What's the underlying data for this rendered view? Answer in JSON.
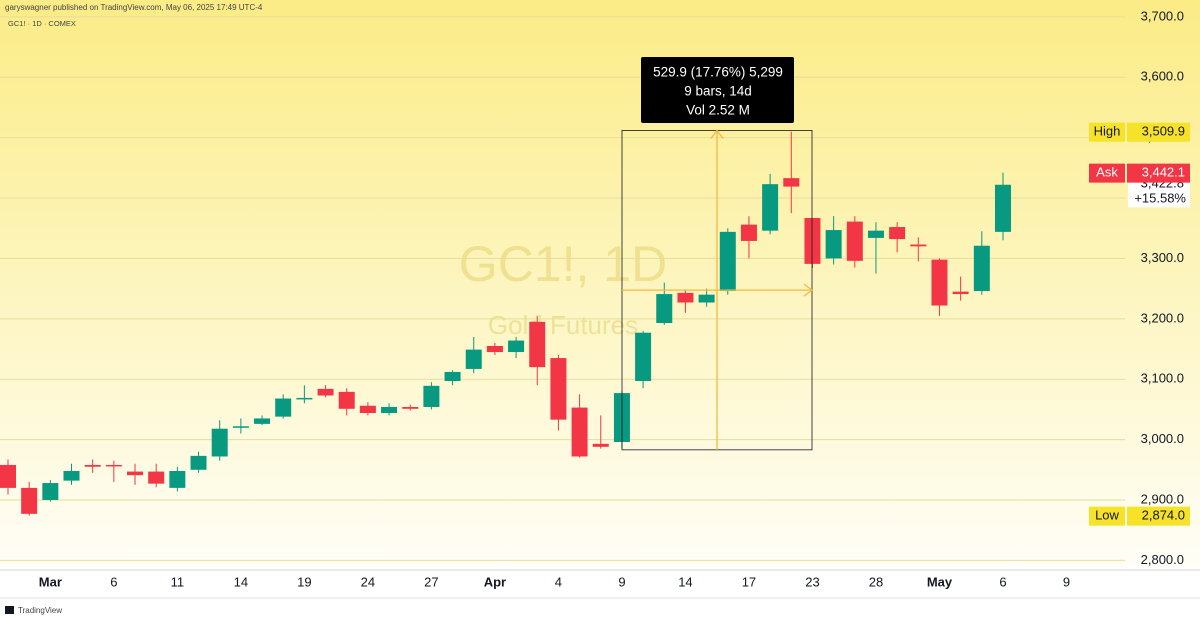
{
  "chart_data": {
    "type": "candlestick",
    "header": "garyswagner published on TradingView.com, May 06, 2025 17:49 UTC-4",
    "title": "GC1! · 1D · COMEX",
    "watermark": "GC1!, 1D",
    "watermark_subtitle": "Gold Futures",
    "footer": "TradingView",
    "categories": [
      null,
      null,
      "Mar",
      null,
      null,
      "6",
      null,
      null,
      "11",
      null,
      null,
      "14",
      null,
      null,
      "19",
      null,
      null,
      "24",
      null,
      null,
      "27",
      null,
      null,
      "Apr",
      null,
      null,
      "4",
      null,
      null,
      "9",
      null,
      null,
      "14",
      null,
      null,
      "17",
      null,
      null,
      "23",
      null,
      null,
      "28",
      null,
      null,
      "May",
      null,
      null,
      "6",
      null,
      null,
      "9",
      null,
      null
    ],
    "open": [
      2958,
      2920,
      2900,
      2932,
      2958,
      2958,
      2947,
      2947,
      2920,
      2950,
      2972,
      3020,
      3026,
      3038,
      3068,
      3084,
      3079,
      3056,
      3044,
      3054,
      3054,
      3097,
      3117,
      3155,
      3145,
      3195,
      3135,
      3053,
      2993,
      2996,
      3097,
      3193,
      3243,
      3227,
      3246,
      3356,
      3346,
      3433,
      3367,
      3300,
      3361,
      3334,
      3352,
      3323,
      3298,
      3245,
      3246,
      3344,
      null,
      null,
      null,
      null,
      null
    ],
    "high": [
      2967,
      2930,
      2933,
      2960,
      2967,
      2965,
      2960,
      2960,
      2955,
      2980,
      3032,
      3035,
      3040,
      3075,
      3090,
      3090,
      3085,
      3062,
      3060,
      3058,
      3095,
      3115,
      3170,
      3160,
      3170,
      3205,
      3140,
      3075,
      3040,
      3080,
      3180,
      3260,
      3248,
      3250,
      3350,
      3370,
      3440,
      3509.9,
      3367,
      3370,
      3370,
      3360,
      3360,
      3335,
      3300,
      3270,
      3345,
      3442,
      null,
      null,
      null,
      null,
      null
    ],
    "low": [
      2909,
      2874,
      2897,
      2925,
      2945,
      2930,
      2925,
      2921,
      2914,
      2945,
      2965,
      3010,
      3024,
      3035,
      3060,
      3070,
      3040,
      3040,
      3040,
      3048,
      3050,
      3090,
      3110,
      3140,
      3135,
      3090,
      3015,
      2970,
      2985,
      2985,
      3085,
      3190,
      3210,
      3220,
      3240,
      3300,
      3340,
      3375,
      3284,
      3290,
      3285,
      3275,
      3310,
      3295,
      3205,
      3230,
      3240,
      3330,
      null,
      null,
      null,
      null,
      null
    ],
    "close": [
      2920,
      2877,
      2928,
      2948,
      2955,
      2956,
      2941,
      2927,
      2948,
      2973,
      3018,
      3022,
      3035,
      3068,
      3069,
      3073,
      3051,
      3044,
      3054,
      3051,
      3089,
      3112,
      3149,
      3145,
      3164,
      3120,
      3033,
      2972,
      2988,
      3077,
      3177,
      3241,
      3227,
      3240,
      3344,
      3329,
      3423,
      3419,
      3291,
      3347,
      3296,
      3346,
      3332,
      3320,
      3222,
      3241,
      3321,
      3422,
      null,
      null,
      null,
      null,
      null
    ],
    "up_color": "#089981",
    "down_color": "#f23645",
    "ylim": [
      2784,
      3728
    ],
    "yticks": [
      {
        "value": 2800,
        "label": "2,800.0"
      },
      {
        "value": 2900,
        "label": "2,900.0"
      },
      {
        "value": 3000,
        "label": "3,000.0"
      },
      {
        "value": 3100,
        "label": "3,100.0"
      },
      {
        "value": 3200,
        "label": "3,200.0"
      },
      {
        "value": 3300,
        "label": "3,300.0"
      },
      {
        "value": 3400,
        "label": "3,400.0"
      },
      {
        "value": 3500,
        "label": "3,500.0"
      },
      {
        "value": 3600,
        "label": "3,600.0"
      },
      {
        "value": 3700,
        "label": "3,700.0"
      }
    ],
    "grid": true,
    "measure": {
      "lines": [
        "529.9 (17.76%) 5,299",
        "9 bars, 14d",
        "Vol 2.52 M"
      ],
      "y_range": [
        2983,
        3512
      ],
      "color": "#f5b942"
    },
    "last_price": {
      "value": 3422.8,
      "label": "3,422.8",
      "change": "+15.58%"
    },
    "price_labels": [
      {
        "name": "High",
        "value": 3509.9,
        "label": "3,509.9",
        "color": "#f7e22a",
        "text_color": "#131722"
      },
      {
        "name": "Ask",
        "value": 3442.1,
        "label": "3,442.1",
        "color": "#f23645",
        "text_color": "#ffffff"
      },
      {
        "name": "Low",
        "value": 2874,
        "label": "2,874.0",
        "color": "#f7e22a",
        "text_color": "#131722"
      }
    ]
  }
}
